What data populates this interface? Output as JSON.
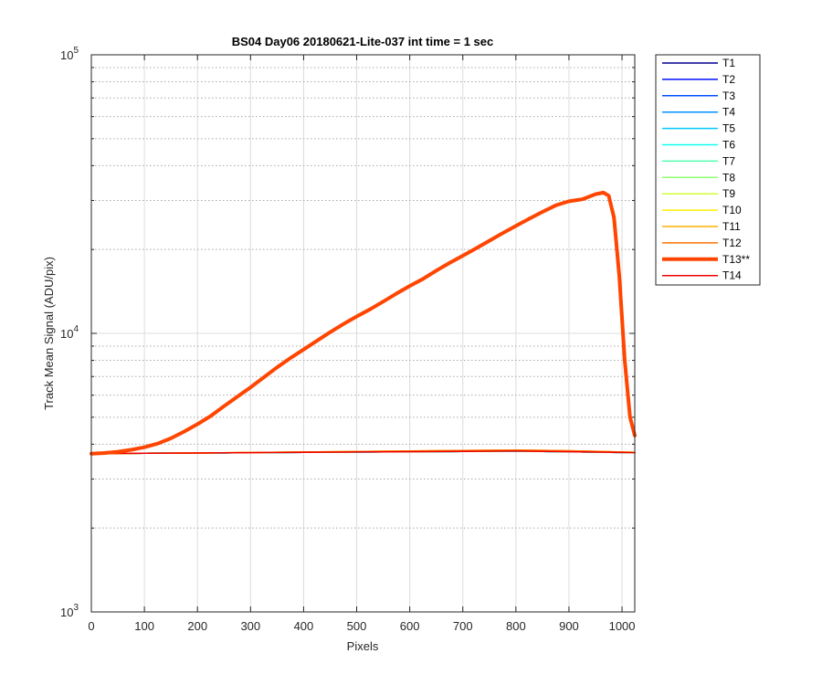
{
  "chart_data": {
    "type": "line",
    "title": "BS04 Day06 20180621-Lite-037 int time = 1 sec",
    "xlabel": "Pixels",
    "ylabel": "Track Mean Signal (ADU/pix)",
    "xlim": [
      0,
      1024
    ],
    "ylim": [
      1000,
      100000
    ],
    "yscale": "log",
    "grid": true,
    "legend_position": "outside-top-right",
    "x_ticks": [
      0,
      100,
      200,
      300,
      400,
      500,
      600,
      700,
      800,
      900,
      1000
    ],
    "y_ticks": [
      {
        "value": 1000,
        "base": "10",
        "exp": "3"
      },
      {
        "value": 10000,
        "base": "10",
        "exp": "4"
      },
      {
        "value": 100000,
        "base": "10",
        "exp": "5"
      }
    ],
    "series": [
      {
        "name": "T1",
        "color": "#00008f",
        "width": 1.5,
        "x": [
          0,
          100,
          200,
          300,
          400,
          500,
          600,
          700,
          800,
          900,
          1024
        ],
        "y": [
          3700,
          3710,
          3720,
          3730,
          3740,
          3750,
          3760,
          3770,
          3780,
          3760,
          3730
        ]
      },
      {
        "name": "T2",
        "color": "#0010ff",
        "width": 1.5,
        "x": [
          0,
          100,
          200,
          300,
          400,
          500,
          600,
          700,
          800,
          900,
          1024
        ],
        "y": [
          3700,
          3710,
          3720,
          3730,
          3740,
          3750,
          3760,
          3770,
          3780,
          3760,
          3730
        ]
      },
      {
        "name": "T3",
        "color": "#0050ff",
        "width": 1.5,
        "x": [
          0,
          100,
          200,
          300,
          400,
          500,
          600,
          700,
          800,
          900,
          1024
        ],
        "y": [
          3700,
          3710,
          3720,
          3730,
          3740,
          3750,
          3760,
          3770,
          3780,
          3760,
          3730
        ]
      },
      {
        "name": "T4",
        "color": "#0090ff",
        "width": 1.5,
        "x": [
          0,
          100,
          200,
          300,
          400,
          500,
          600,
          700,
          800,
          900,
          1024
        ],
        "y": [
          3700,
          3710,
          3720,
          3730,
          3740,
          3750,
          3760,
          3770,
          3780,
          3760,
          3730
        ]
      },
      {
        "name": "T5",
        "color": "#00c8ff",
        "width": 1.5,
        "x": [
          0,
          100,
          200,
          300,
          400,
          500,
          600,
          700,
          800,
          900,
          1024
        ],
        "y": [
          3700,
          3710,
          3720,
          3730,
          3740,
          3750,
          3760,
          3770,
          3780,
          3760,
          3730
        ]
      },
      {
        "name": "T6",
        "color": "#10ffef",
        "width": 1.5,
        "x": [
          0,
          100,
          200,
          300,
          400,
          500,
          600,
          700,
          800,
          900,
          1024
        ],
        "y": [
          3700,
          3710,
          3720,
          3730,
          3740,
          3750,
          3760,
          3770,
          3780,
          3760,
          3730
        ]
      },
      {
        "name": "T7",
        "color": "#50ffaf",
        "width": 1.5,
        "x": [
          0,
          100,
          200,
          300,
          400,
          500,
          600,
          700,
          800,
          900,
          1024
        ],
        "y": [
          3700,
          3710,
          3720,
          3730,
          3740,
          3750,
          3760,
          3770,
          3780,
          3760,
          3730
        ]
      },
      {
        "name": "T8",
        "color": "#8fff70",
        "width": 1.5,
        "x": [
          0,
          100,
          200,
          300,
          400,
          500,
          600,
          700,
          800,
          900,
          1024
        ],
        "y": [
          3700,
          3710,
          3720,
          3730,
          3740,
          3750,
          3760,
          3770,
          3780,
          3760,
          3730
        ]
      },
      {
        "name": "T9",
        "color": "#cfff30",
        "width": 1.5,
        "x": [
          0,
          100,
          200,
          300,
          400,
          500,
          600,
          700,
          800,
          900,
          1024
        ],
        "y": [
          3700,
          3710,
          3720,
          3735,
          3750,
          3765,
          3780,
          3790,
          3800,
          3780,
          3740
        ]
      },
      {
        "name": "T10",
        "color": "#ffef00",
        "width": 1.5,
        "x": [
          0,
          100,
          200,
          300,
          400,
          500,
          600,
          700,
          800,
          900,
          1024
        ],
        "y": [
          3700,
          3710,
          3720,
          3735,
          3750,
          3765,
          3780,
          3795,
          3805,
          3785,
          3740
        ]
      },
      {
        "name": "T11",
        "color": "#ffb000",
        "width": 1.5,
        "x": [
          0,
          100,
          200,
          300,
          400,
          500,
          600,
          700,
          800,
          900,
          1024
        ],
        "y": [
          3700,
          3710,
          3720,
          3735,
          3750,
          3765,
          3785,
          3800,
          3810,
          3790,
          3740
        ]
      },
      {
        "name": "T12",
        "color": "#ff7000",
        "width": 1.5,
        "x": [
          0,
          100,
          200,
          300,
          400,
          500,
          600,
          700,
          800,
          900,
          1024
        ],
        "y": [
          3700,
          3710,
          3720,
          3735,
          3750,
          3765,
          3785,
          3800,
          3810,
          3790,
          3740
        ]
      },
      {
        "name": "T14",
        "color": "#ef0000",
        "width": 1.5,
        "x": [
          0,
          100,
          200,
          300,
          400,
          500,
          600,
          700,
          800,
          900,
          1024
        ],
        "y": [
          3700,
          3710,
          3720,
          3730,
          3740,
          3750,
          3760,
          3770,
          3780,
          3760,
          3730
        ]
      },
      {
        "name": "T13**",
        "color": "#ff4500",
        "width": 4,
        "x": [
          0,
          25,
          50,
          75,
          100,
          125,
          150,
          175,
          200,
          225,
          250,
          275,
          300,
          325,
          350,
          375,
          400,
          425,
          450,
          475,
          500,
          525,
          550,
          575,
          600,
          625,
          650,
          675,
          700,
          725,
          750,
          775,
          800,
          825,
          850,
          875,
          900,
          925,
          950,
          965,
          975,
          985,
          995,
          1005,
          1015,
          1024
        ],
        "y": [
          3700,
          3720,
          3760,
          3820,
          3900,
          4020,
          4200,
          4440,
          4720,
          5050,
          5480,
          5920,
          6400,
          6950,
          7550,
          8150,
          8750,
          9400,
          10100,
          10800,
          11500,
          12200,
          13000,
          13900,
          14800,
          15700,
          16800,
          17900,
          19000,
          20200,
          21500,
          22900,
          24300,
          25800,
          27300,
          28800,
          29800,
          30300,
          31600,
          32000,
          31200,
          26000,
          16000,
          8000,
          5000,
          4300
        ]
      }
    ],
    "legend": [
      {
        "name": "T1",
        "color": "#00008f",
        "width": 1.5
      },
      {
        "name": "T2",
        "color": "#0010ff",
        "width": 1.5
      },
      {
        "name": "T3",
        "color": "#0050ff",
        "width": 1.5
      },
      {
        "name": "T4",
        "color": "#0090ff",
        "width": 1.5
      },
      {
        "name": "T5",
        "color": "#00c8ff",
        "width": 1.5
      },
      {
        "name": "T6",
        "color": "#10ffef",
        "width": 1.5
      },
      {
        "name": "T7",
        "color": "#50ffaf",
        "width": 1.5
      },
      {
        "name": "T8",
        "color": "#8fff70",
        "width": 1.5
      },
      {
        "name": "T9",
        "color": "#cfff30",
        "width": 1.5
      },
      {
        "name": "T10",
        "color": "#ffef00",
        "width": 1.5
      },
      {
        "name": "T11",
        "color": "#ffb000",
        "width": 1.5
      },
      {
        "name": "T12",
        "color": "#ff7000",
        "width": 1.5
      },
      {
        "name": "T13**",
        "color": "#ff4500",
        "width": 4
      },
      {
        "name": "T14",
        "color": "#ef0000",
        "width": 1.5
      }
    ]
  }
}
